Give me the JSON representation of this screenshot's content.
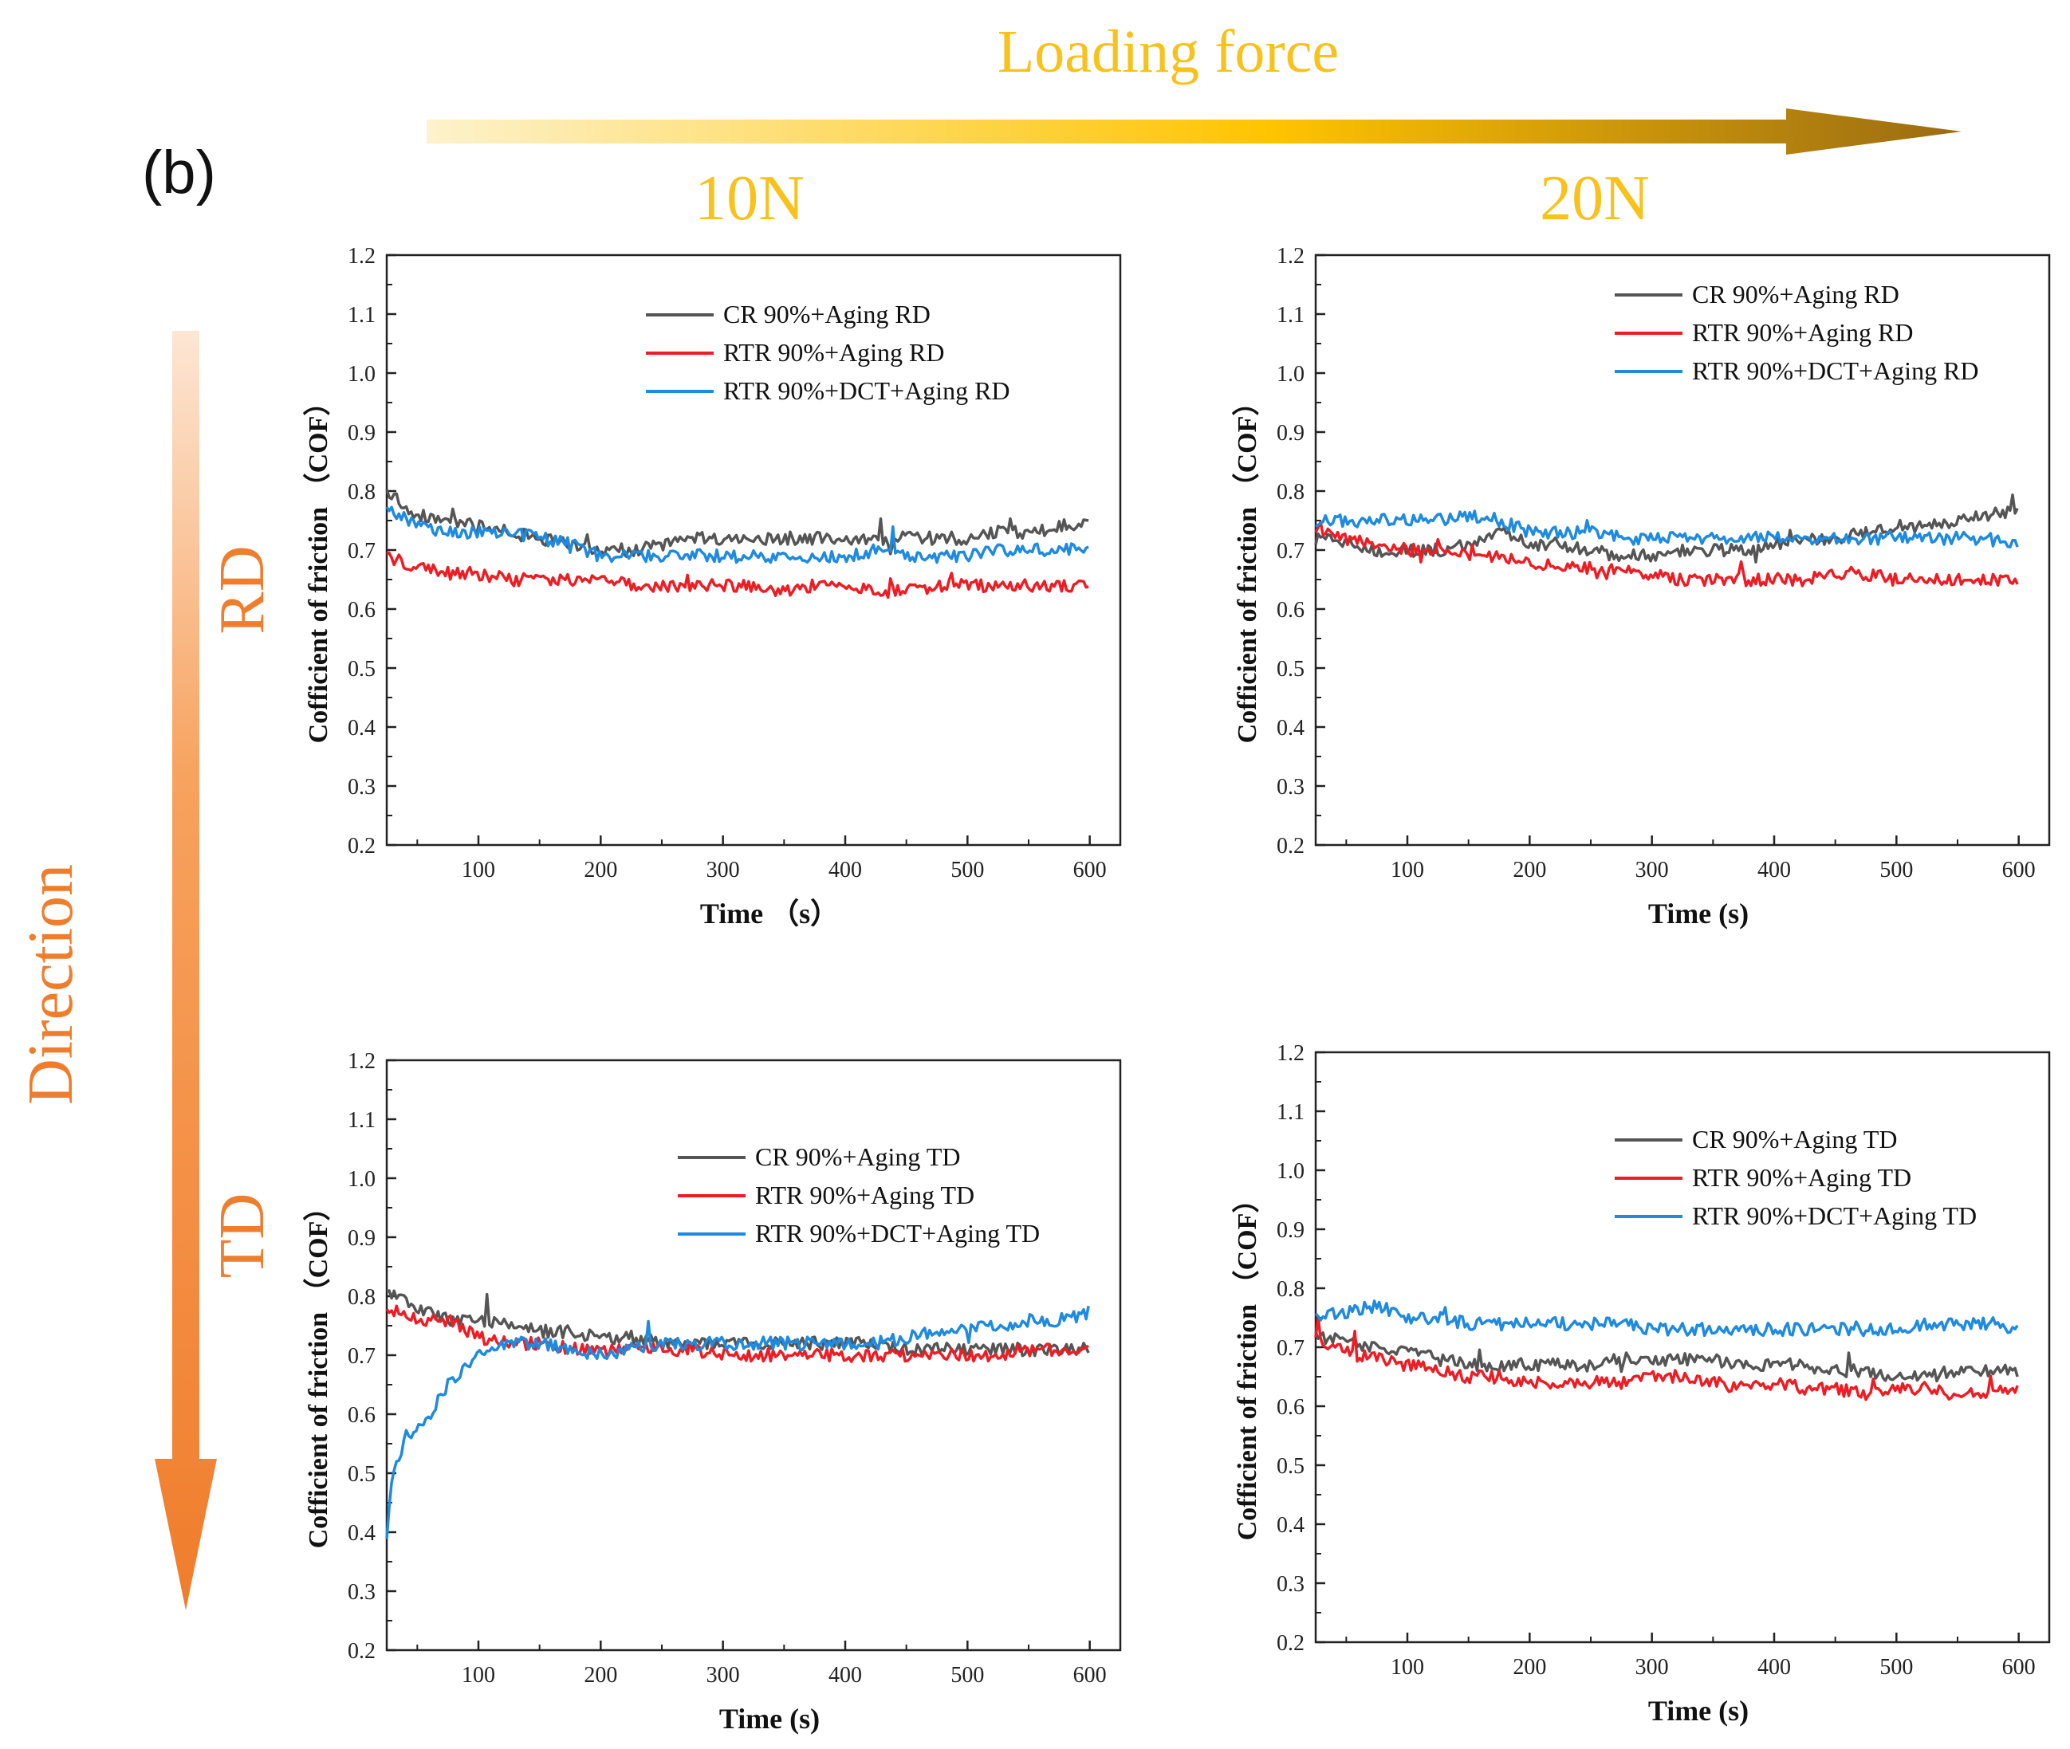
{
  "panel_label": "(b)",
  "loading_force_label": "Loading force",
  "direction_label": "Direction",
  "col_labels": [
    "10N",
    "20N"
  ],
  "row_labels": [
    "RD",
    "TD"
  ],
  "colors": {
    "gold": "#f7c21b",
    "orange": "#f07d2c",
    "black_series": "#555555",
    "red_series": "#ef1c24",
    "blue_series": "#1e8ae0"
  },
  "chart_data": [
    {
      "type": "line",
      "force": "10N",
      "direction": "RD",
      "xlabel": "Time （s）",
      "ylabel": "Cofficient of friction （COF）",
      "xlim": [
        25,
        625
      ],
      "ylim": [
        0.2,
        1.2
      ],
      "xticks": [
        100,
        200,
        300,
        400,
        500,
        600
      ],
      "yticks": [
        0.2,
        0.3,
        0.4,
        0.5,
        0.6,
        0.7,
        0.8,
        0.9,
        1.0,
        1.1,
        1.2
      ],
      "legend_position": "upper-right",
      "series": [
        {
          "name": "CR 90%+Aging RD",
          "color": "#555555",
          "x": [
            25,
            50,
            75,
            100,
            125,
            150,
            175,
            200,
            225,
            250,
            275,
            300,
            325,
            350,
            375,
            400,
            425,
            450,
            475,
            500,
            525,
            550,
            575,
            600
          ],
          "y": [
            0.8,
            0.76,
            0.75,
            0.74,
            0.73,
            0.72,
            0.71,
            0.7,
            0.7,
            0.71,
            0.72,
            0.72,
            0.72,
            0.72,
            0.72,
            0.72,
            0.72,
            0.72,
            0.72,
            0.72,
            0.73,
            0.73,
            0.74,
            0.75
          ]
        },
        {
          "name": "RTR 90%+Aging RD",
          "color": "#ef1c24",
          "x": [
            25,
            50,
            75,
            100,
            125,
            150,
            175,
            200,
            225,
            250,
            275,
            300,
            325,
            350,
            375,
            400,
            425,
            450,
            475,
            500,
            525,
            550,
            575,
            600
          ],
          "y": [
            0.69,
            0.67,
            0.66,
            0.66,
            0.65,
            0.65,
            0.65,
            0.65,
            0.64,
            0.64,
            0.64,
            0.64,
            0.64,
            0.63,
            0.64,
            0.64,
            0.63,
            0.63,
            0.64,
            0.64,
            0.64,
            0.64,
            0.64,
            0.64
          ]
        },
        {
          "name": "RTR 90%+DCT+Aging RD",
          "color": "#1e8ae0",
          "x": [
            25,
            50,
            75,
            100,
            125,
            150,
            175,
            200,
            225,
            250,
            275,
            300,
            325,
            350,
            375,
            400,
            425,
            450,
            475,
            500,
            525,
            550,
            575,
            600
          ],
          "y": [
            0.77,
            0.74,
            0.73,
            0.73,
            0.73,
            0.72,
            0.71,
            0.69,
            0.69,
            0.69,
            0.69,
            0.69,
            0.69,
            0.69,
            0.69,
            0.69,
            0.7,
            0.69,
            0.69,
            0.69,
            0.7,
            0.7,
            0.7,
            0.7
          ]
        }
      ]
    },
    {
      "type": "line",
      "force": "20N",
      "direction": "RD",
      "xlabel": "Time (s)",
      "ylabel": "Cofficient of friction （COF）",
      "xlim": [
        25,
        625
      ],
      "ylim": [
        0.2,
        1.2
      ],
      "xticks": [
        100,
        200,
        300,
        400,
        500,
        600
      ],
      "yticks": [
        0.2,
        0.3,
        0.4,
        0.5,
        0.6,
        0.7,
        0.8,
        0.9,
        1.0,
        1.1,
        1.2
      ],
      "legend_position": "upper-right",
      "series": [
        {
          "name": "CR 90%+Aging RD",
          "color": "#555555",
          "x": [
            25,
            50,
            75,
            100,
            125,
            150,
            175,
            200,
            225,
            250,
            275,
            300,
            325,
            350,
            375,
            400,
            425,
            450,
            475,
            500,
            525,
            550,
            575,
            600
          ],
          "y": [
            0.72,
            0.71,
            0.7,
            0.7,
            0.7,
            0.71,
            0.73,
            0.71,
            0.71,
            0.7,
            0.69,
            0.69,
            0.7,
            0.7,
            0.7,
            0.71,
            0.72,
            0.72,
            0.73,
            0.74,
            0.74,
            0.75,
            0.76,
            0.77
          ]
        },
        {
          "name": "RTR 90%+Aging RD",
          "color": "#ef1c24",
          "x": [
            25,
            50,
            75,
            100,
            125,
            150,
            175,
            200,
            225,
            250,
            275,
            300,
            325,
            350,
            375,
            400,
            425,
            450,
            475,
            500,
            525,
            550,
            575,
            600
          ],
          "y": [
            0.74,
            0.72,
            0.71,
            0.7,
            0.7,
            0.69,
            0.69,
            0.68,
            0.67,
            0.67,
            0.67,
            0.66,
            0.65,
            0.65,
            0.65,
            0.65,
            0.65,
            0.66,
            0.66,
            0.65,
            0.65,
            0.65,
            0.65,
            0.65
          ]
        },
        {
          "name": "RTR 90%+DCT+Aging RD",
          "color": "#1e8ae0",
          "x": [
            25,
            50,
            75,
            100,
            125,
            150,
            175,
            200,
            225,
            250,
            275,
            300,
            325,
            350,
            375,
            400,
            425,
            450,
            475,
            500,
            525,
            550,
            575,
            600
          ],
          "y": [
            0.75,
            0.75,
            0.75,
            0.75,
            0.75,
            0.76,
            0.75,
            0.73,
            0.73,
            0.73,
            0.72,
            0.72,
            0.72,
            0.72,
            0.72,
            0.72,
            0.72,
            0.72,
            0.72,
            0.72,
            0.72,
            0.72,
            0.72,
            0.71
          ]
        }
      ]
    },
    {
      "type": "line",
      "force": "10N",
      "direction": "TD",
      "xlabel": "Time (s)",
      "ylabel": "Cofficient of friction （COF）",
      "xlim": [
        25,
        625
      ],
      "ylim": [
        0.2,
        1.2
      ],
      "xticks": [
        100,
        200,
        300,
        400,
        500,
        600
      ],
      "yticks": [
        0.2,
        0.3,
        0.4,
        0.5,
        0.6,
        0.7,
        0.8,
        0.9,
        1.0,
        1.1,
        1.2
      ],
      "legend_position": "center-right",
      "series": [
        {
          "name": "CR 90%+Aging TD",
          "color": "#555555",
          "x": [
            25,
            50,
            75,
            100,
            125,
            150,
            175,
            200,
            225,
            250,
            275,
            300,
            325,
            350,
            375,
            400,
            425,
            450,
            475,
            500,
            525,
            550,
            575,
            600
          ],
          "y": [
            0.81,
            0.78,
            0.76,
            0.76,
            0.75,
            0.74,
            0.74,
            0.73,
            0.73,
            0.72,
            0.72,
            0.72,
            0.72,
            0.72,
            0.72,
            0.72,
            0.72,
            0.71,
            0.71,
            0.71,
            0.71,
            0.71,
            0.71,
            0.71
          ]
        },
        {
          "name": "RTR 90%+Aging TD",
          "color": "#ef1c24",
          "x": [
            25,
            50,
            75,
            100,
            125,
            150,
            175,
            200,
            225,
            250,
            275,
            300,
            325,
            350,
            375,
            400,
            425,
            450,
            475,
            500,
            525,
            550,
            575,
            600
          ],
          "y": [
            0.78,
            0.76,
            0.76,
            0.73,
            0.72,
            0.72,
            0.71,
            0.71,
            0.71,
            0.71,
            0.71,
            0.7,
            0.7,
            0.7,
            0.7,
            0.7,
            0.7,
            0.7,
            0.7,
            0.7,
            0.7,
            0.71,
            0.71,
            0.71
          ]
        },
        {
          "name": "RTR 90%+DCT+Aging TD",
          "color": "#1e8ae0",
          "x": [
            25,
            30,
            35,
            40,
            45,
            50,
            60,
            75,
            90,
            100,
            125,
            150,
            175,
            200,
            225,
            250,
            275,
            300,
            325,
            350,
            375,
            400,
            425,
            450,
            475,
            500,
            525,
            550,
            575,
            600
          ],
          "y": [
            0.39,
            0.5,
            0.53,
            0.56,
            0.57,
            0.58,
            0.6,
            0.65,
            0.68,
            0.71,
            0.72,
            0.72,
            0.71,
            0.7,
            0.71,
            0.72,
            0.72,
            0.72,
            0.72,
            0.72,
            0.72,
            0.72,
            0.72,
            0.73,
            0.74,
            0.75,
            0.75,
            0.76,
            0.76,
            0.77
          ]
        }
      ]
    },
    {
      "type": "line",
      "force": "20N",
      "direction": "TD",
      "xlabel": "Time (s)",
      "ylabel": "Cofficient of friction （COF）",
      "xlim": [
        25,
        625
      ],
      "ylim": [
        0.2,
        1.2
      ],
      "xticks": [
        100,
        200,
        300,
        400,
        500,
        600
      ],
      "yticks": [
        0.2,
        0.3,
        0.4,
        0.5,
        0.6,
        0.7,
        0.8,
        0.9,
        1.0,
        1.1,
        1.2
      ],
      "legend_position": "upper-right",
      "series": [
        {
          "name": "CR 90%+Aging TD",
          "color": "#555555",
          "x": [
            25,
            50,
            75,
            100,
            125,
            150,
            175,
            200,
            225,
            250,
            275,
            300,
            325,
            350,
            375,
            400,
            425,
            450,
            475,
            500,
            525,
            550,
            575,
            600
          ],
          "y": [
            0.72,
            0.71,
            0.7,
            0.69,
            0.68,
            0.67,
            0.67,
            0.67,
            0.67,
            0.67,
            0.68,
            0.68,
            0.68,
            0.68,
            0.67,
            0.67,
            0.67,
            0.66,
            0.66,
            0.65,
            0.65,
            0.66,
            0.66,
            0.66
          ]
        },
        {
          "name": "RTR 90%+Aging TD",
          "color": "#ef1c24",
          "x": [
            25,
            50,
            75,
            100,
            125,
            150,
            175,
            200,
            225,
            250,
            275,
            300,
            325,
            350,
            375,
            400,
            425,
            450,
            475,
            500,
            525,
            550,
            575,
            600
          ],
          "y": [
            0.71,
            0.69,
            0.68,
            0.67,
            0.66,
            0.65,
            0.65,
            0.64,
            0.64,
            0.64,
            0.64,
            0.65,
            0.65,
            0.64,
            0.63,
            0.64,
            0.63,
            0.63,
            0.62,
            0.63,
            0.63,
            0.62,
            0.62,
            0.63
          ]
        },
        {
          "name": "RTR 90%+DCT+Aging TD",
          "color": "#1e8ae0",
          "x": [
            25,
            50,
            75,
            100,
            125,
            150,
            175,
            200,
            225,
            250,
            275,
            300,
            325,
            350,
            375,
            400,
            425,
            450,
            475,
            500,
            525,
            550,
            575,
            600
          ],
          "y": [
            0.75,
            0.76,
            0.77,
            0.75,
            0.75,
            0.74,
            0.74,
            0.74,
            0.74,
            0.74,
            0.74,
            0.73,
            0.73,
            0.73,
            0.73,
            0.73,
            0.73,
            0.73,
            0.73,
            0.73,
            0.74,
            0.74,
            0.74,
            0.73
          ]
        }
      ]
    }
  ]
}
